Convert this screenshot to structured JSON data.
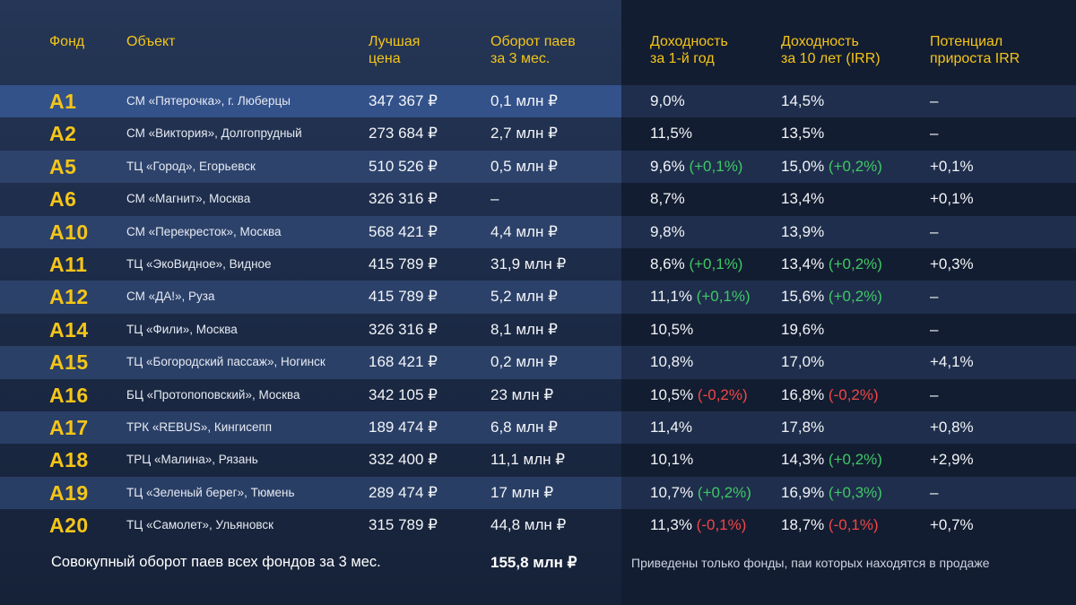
{
  "headers": {
    "fund": "Фонд",
    "object": "Объект",
    "price": "Лучшая\nцена",
    "turnover": "Оборот паев\nза 3 мес.",
    "yield1": "Доходность\nза 1-й год",
    "yield10": "Доходность\nза 10 лет (IRR)",
    "potential": "Потенциал\nприроста IRR"
  },
  "rows": [
    {
      "fund": "A1",
      "object": "СМ «Пятерочка», г. Люберцы",
      "price": "347 367 ₽",
      "turnover": "0,1 млн ₽",
      "y1": "9,0%",
      "y1d": "",
      "y1t": "",
      "y10": "14,5%",
      "y10d": "",
      "y10t": "",
      "pot": "–"
    },
    {
      "fund": "A2",
      "object": "СМ «Виктория», Долгопрудный",
      "price": "273 684 ₽",
      "turnover": "2,7 млн ₽",
      "y1": "11,5%",
      "y1d": "",
      "y1t": "",
      "y10": "13,5%",
      "y10d": "",
      "y10t": "",
      "pot": "–"
    },
    {
      "fund": "A5",
      "object": "ТЦ «Город», Егорьевск",
      "price": "510 526 ₽",
      "turnover": "0,5 млн ₽",
      "y1": "9,6%",
      "y1d": "(+0,1%)",
      "y1t": "pos",
      "y10": "15,0%",
      "y10d": "(+0,2%)",
      "y10t": "pos",
      "pot": "+0,1%"
    },
    {
      "fund": "A6",
      "object": "СМ «Магнит», Москва",
      "price": "326 316 ₽",
      "turnover": "–",
      "y1": "8,7%",
      "y1d": "",
      "y1t": "",
      "y10": "13,4%",
      "y10d": "",
      "y10t": "",
      "pot": "+0,1%"
    },
    {
      "fund": "A10",
      "object": "СМ «Перекресток», Москва",
      "price": "568 421 ₽",
      "turnover": "4,4 млн ₽",
      "y1": "9,8%",
      "y1d": "",
      "y1t": "",
      "y10": "13,9%",
      "y10d": "",
      "y10t": "",
      "pot": "–"
    },
    {
      "fund": "A11",
      "object": "ТЦ «ЭкоВидное», Видное",
      "price": "415 789 ₽",
      "turnover": "31,9 млн ₽",
      "y1": "8,6%",
      "y1d": "(+0,1%)",
      "y1t": "pos",
      "y10": "13,4%",
      "y10d": "(+0,2%)",
      "y10t": "pos",
      "pot": "+0,3%"
    },
    {
      "fund": "A12",
      "object": "СМ «ДА!», Руза",
      "price": "415 789 ₽",
      "turnover": "5,2 млн ₽",
      "y1": "11,1%",
      "y1d": "(+0,1%)",
      "y1t": "pos",
      "y10": "15,6%",
      "y10d": "(+0,2%)",
      "y10t": "pos",
      "pot": "–"
    },
    {
      "fund": "A14",
      "object": "ТЦ «Фили», Москва",
      "price": "326 316 ₽",
      "turnover": "8,1 млн ₽",
      "y1": "10,5%",
      "y1d": "",
      "y1t": "",
      "y10": "19,6%",
      "y10d": "",
      "y10t": "",
      "pot": "–"
    },
    {
      "fund": "A15",
      "object": "ТЦ «Богородский пассаж», Ногинск",
      "price": "168 421 ₽",
      "turnover": "0,2 млн ₽",
      "y1": "10,8%",
      "y1d": "",
      "y1t": "",
      "y10": "17,0%",
      "y10d": "",
      "y10t": "",
      "pot": "+4,1%"
    },
    {
      "fund": "A16",
      "object": "БЦ «Протопоповский», Москва",
      "price": "342 105 ₽",
      "turnover": "23 млн ₽",
      "y1": "10,5%",
      "y1d": "(-0,2%)",
      "y1t": "neg",
      "y10": "16,8%",
      "y10d": "(-0,2%)",
      "y10t": "neg",
      "pot": "–"
    },
    {
      "fund": "A17",
      "object": "ТРК «REBUS», Кингисепп",
      "price": "189 474 ₽",
      "turnover": "6,8 млн ₽",
      "y1": "11,4%",
      "y1d": "",
      "y1t": "",
      "y10": "17,8%",
      "y10d": "",
      "y10t": "",
      "pot": "+0,8%"
    },
    {
      "fund": "A18",
      "object": "ТРЦ «Малина», Рязань",
      "price": "332 400 ₽",
      "turnover": "11,1 млн ₽",
      "y1": "10,1%",
      "y1d": "",
      "y1t": "",
      "y10": "14,3%",
      "y10d": "(+0,2%)",
      "y10t": "pos",
      "pot": "+2,9%"
    },
    {
      "fund": "A19",
      "object": "ТЦ «Зеленый берег», Тюмень",
      "price": "289 474 ₽",
      "turnover": "17 млн ₽",
      "y1": "10,7%",
      "y1d": "(+0,2%)",
      "y1t": "pos",
      "y10": "16,9%",
      "y10d": "(+0,3%)",
      "y10t": "pos",
      "pot": "–"
    },
    {
      "fund": "A20",
      "object": "ТЦ «Самолет», Ульяновск",
      "price": "315 789 ₽",
      "turnover": "44,8 млн ₽",
      "y1": "11,3%",
      "y1d": "(-0,1%)",
      "y1t": "neg",
      "y10": "18,7%",
      "y10d": "(-0,1%)",
      "y10t": "neg",
      "pot": "+0,7%"
    }
  ],
  "footer": {
    "total_label": "Совокупный оборот паев всех фондов за 3 мес.",
    "total_value": "155,8 млн ₽",
    "note": "Приведены только фонды, паи которых находятся в продаже"
  },
  "colors": {
    "accent": "#f5c518",
    "positive": "#3fc866",
    "negative": "#f04646"
  }
}
